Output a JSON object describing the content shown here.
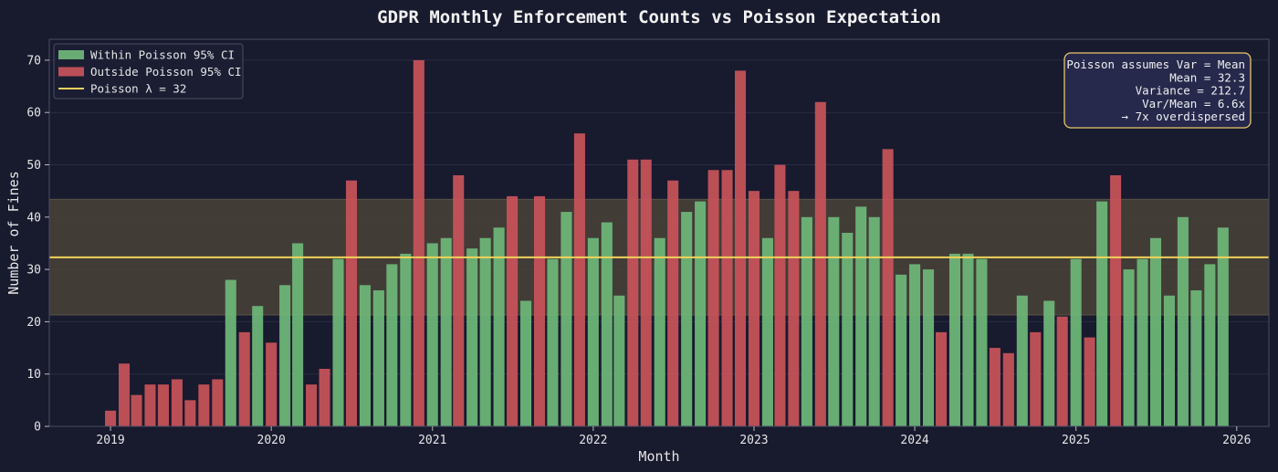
{
  "chart_data": {
    "type": "bar",
    "title": "GDPR Monthly Enforcement Counts vs Poisson Expectation",
    "xlabel": "Month",
    "ylabel": "Number of Fines",
    "ylim": [
      0,
      74
    ],
    "yticks": [
      0,
      10,
      20,
      30,
      40,
      50,
      60,
      70
    ],
    "xlim": [
      "2018-08-15",
      "2026-03-15"
    ],
    "xticks": [
      "2019",
      "2020",
      "2021",
      "2022",
      "2023",
      "2024",
      "2025",
      "2026"
    ],
    "grid": "y",
    "lambda": 32.3,
    "ci_95": [
      21.3,
      43.4
    ],
    "series": [
      {
        "name": "Within Poisson 95% CI",
        "color": "#6fb97a"
      },
      {
        "name": "Outside Poisson 95% CI",
        "color": "#c9545a"
      }
    ],
    "bars": [
      {
        "month": "2019-01",
        "value": 3,
        "outside": true
      },
      {
        "month": "2019-02",
        "value": 12,
        "outside": true
      },
      {
        "month": "2019-03",
        "value": 6,
        "outside": true
      },
      {
        "month": "2019-04",
        "value": 8,
        "outside": true
      },
      {
        "month": "2019-05",
        "value": 8,
        "outside": true
      },
      {
        "month": "2019-06",
        "value": 9,
        "outside": true
      },
      {
        "month": "2019-07",
        "value": 5,
        "outside": true
      },
      {
        "month": "2019-08",
        "value": 8,
        "outside": true
      },
      {
        "month": "2019-09",
        "value": 9,
        "outside": true
      },
      {
        "month": "2019-10",
        "value": 28,
        "outside": false
      },
      {
        "month": "2019-11",
        "value": 18,
        "outside": true
      },
      {
        "month": "2019-12",
        "value": 23,
        "outside": false
      },
      {
        "month": "2020-01",
        "value": 16,
        "outside": true
      },
      {
        "month": "2020-02",
        "value": 27,
        "outside": false
      },
      {
        "month": "2020-03",
        "value": 35,
        "outside": false
      },
      {
        "month": "2020-04",
        "value": 8,
        "outside": true
      },
      {
        "month": "2020-05",
        "value": 11,
        "outside": true
      },
      {
        "month": "2020-06",
        "value": 32,
        "outside": false
      },
      {
        "month": "2020-07",
        "value": 47,
        "outside": true
      },
      {
        "month": "2020-08",
        "value": 27,
        "outside": false
      },
      {
        "month": "2020-09",
        "value": 26,
        "outside": false
      },
      {
        "month": "2020-10",
        "value": 31,
        "outside": false
      },
      {
        "month": "2020-11",
        "value": 33,
        "outside": false
      },
      {
        "month": "2020-12",
        "value": 70,
        "outside": true
      },
      {
        "month": "2021-01",
        "value": 35,
        "outside": false
      },
      {
        "month": "2021-02",
        "value": 36,
        "outside": false
      },
      {
        "month": "2021-03",
        "value": 48,
        "outside": true
      },
      {
        "month": "2021-04",
        "value": 34,
        "outside": false
      },
      {
        "month": "2021-05",
        "value": 36,
        "outside": false
      },
      {
        "month": "2021-06",
        "value": 38,
        "outside": false
      },
      {
        "month": "2021-07",
        "value": 44,
        "outside": true
      },
      {
        "month": "2021-08",
        "value": 24,
        "outside": false
      },
      {
        "month": "2021-09",
        "value": 44,
        "outside": true
      },
      {
        "month": "2021-10",
        "value": 32,
        "outside": false
      },
      {
        "month": "2021-11",
        "value": 41,
        "outside": false
      },
      {
        "month": "2021-12",
        "value": 56,
        "outside": true
      },
      {
        "month": "2022-01",
        "value": 36,
        "outside": false
      },
      {
        "month": "2022-02",
        "value": 39,
        "outside": false
      },
      {
        "month": "2022-03",
        "value": 25,
        "outside": false
      },
      {
        "month": "2022-04",
        "value": 51,
        "outside": true
      },
      {
        "month": "2022-05",
        "value": 51,
        "outside": true
      },
      {
        "month": "2022-06",
        "value": 36,
        "outside": false
      },
      {
        "month": "2022-07",
        "value": 47,
        "outside": true
      },
      {
        "month": "2022-08",
        "value": 41,
        "outside": false
      },
      {
        "month": "2022-09",
        "value": 43,
        "outside": false
      },
      {
        "month": "2022-10",
        "value": 49,
        "outside": true
      },
      {
        "month": "2022-11",
        "value": 49,
        "outside": true
      },
      {
        "month": "2022-12",
        "value": 68,
        "outside": true
      },
      {
        "month": "2023-01",
        "value": 45,
        "outside": true
      },
      {
        "month": "2023-02",
        "value": 36,
        "outside": false
      },
      {
        "month": "2023-03",
        "value": 50,
        "outside": true
      },
      {
        "month": "2023-04",
        "value": 45,
        "outside": true
      },
      {
        "month": "2023-05",
        "value": 40,
        "outside": false
      },
      {
        "month": "2023-06",
        "value": 62,
        "outside": true
      },
      {
        "month": "2023-07",
        "value": 40,
        "outside": false
      },
      {
        "month": "2023-08",
        "value": 37,
        "outside": false
      },
      {
        "month": "2023-09",
        "value": 42,
        "outside": false
      },
      {
        "month": "2023-10",
        "value": 40,
        "outside": false
      },
      {
        "month": "2023-11",
        "value": 53,
        "outside": true
      },
      {
        "month": "2023-12",
        "value": 29,
        "outside": false
      },
      {
        "month": "2024-01",
        "value": 31,
        "outside": false
      },
      {
        "month": "2024-02",
        "value": 30,
        "outside": false
      },
      {
        "month": "2024-03",
        "value": 18,
        "outside": true
      },
      {
        "month": "2024-04",
        "value": 33,
        "outside": false
      },
      {
        "month": "2024-05",
        "value": 33,
        "outside": false
      },
      {
        "month": "2024-06",
        "value": 32,
        "outside": false
      },
      {
        "month": "2024-07",
        "value": 15,
        "outside": true
      },
      {
        "month": "2024-08",
        "value": 14,
        "outside": true
      },
      {
        "month": "2024-09",
        "value": 25,
        "outside": false
      },
      {
        "month": "2024-10",
        "value": 18,
        "outside": true
      },
      {
        "month": "2024-11",
        "value": 24,
        "outside": false
      },
      {
        "month": "2024-12",
        "value": 21,
        "outside": true
      },
      {
        "month": "2025-01",
        "value": 32,
        "outside": false
      },
      {
        "month": "2025-02",
        "value": 17,
        "outside": true
      },
      {
        "month": "2025-03",
        "value": 43,
        "outside": false
      },
      {
        "month": "2025-04",
        "value": 48,
        "outside": true
      },
      {
        "month": "2025-05",
        "value": 30,
        "outside": false
      },
      {
        "month": "2025-06",
        "value": 32,
        "outside": false
      },
      {
        "month": "2025-07",
        "value": 36,
        "outside": false
      },
      {
        "month": "2025-08",
        "value": 25,
        "outside": false
      },
      {
        "month": "2025-09",
        "value": 40,
        "outside": false
      },
      {
        "month": "2025-10",
        "value": 26,
        "outside": false
      },
      {
        "month": "2025-11",
        "value": 31,
        "outside": false
      },
      {
        "month": "2025-12",
        "value": 38,
        "outside": false
      }
    ],
    "legend": {
      "position": "top-left",
      "items": [
        {
          "label": "Within Poisson 95% CI",
          "kind": "patch",
          "color": "#6fb97a"
        },
        {
          "label": "Outside Poisson 95% CI",
          "kind": "patch",
          "color": "#c9545a"
        },
        {
          "label": "Poisson λ = 32",
          "kind": "line",
          "color": "#f2d25a"
        }
      ]
    },
    "annotation": {
      "position": "top-right",
      "lines": [
        "Poisson assumes Var = Mean",
        "Mean = 32.3",
        "Variance = 212.7",
        "Var/Mean = 6.6x",
        "→ 7x overdispersed"
      ]
    },
    "colors": {
      "background": "#181a2e",
      "within": "#6fb97a",
      "outside": "#c9545a",
      "lambda_line": "#f2d25a",
      "ci_band": "#4a4338",
      "annotation_box": "#272a4e",
      "annotation_border": "#e8c66a"
    }
  }
}
